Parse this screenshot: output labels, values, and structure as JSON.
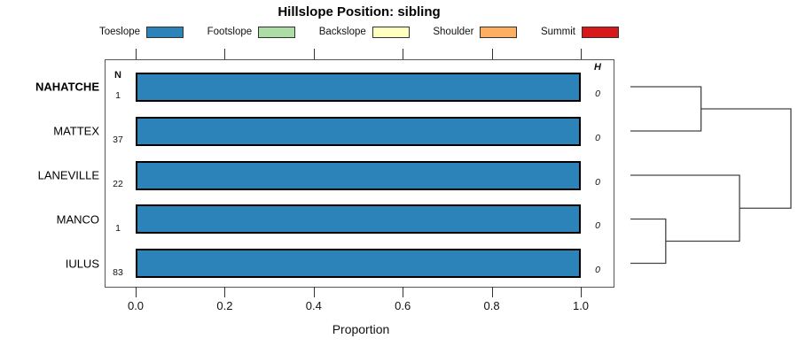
{
  "chart_data": {
    "type": "bar",
    "orientation": "horizontal",
    "stacked": true,
    "title": "Hillslope Position: sibling",
    "xlabel": "Proportion",
    "xlim": [
      0,
      1
    ],
    "x_ticks": [
      "0.0",
      "0.2",
      "0.4",
      "0.6",
      "0.8",
      "1.0"
    ],
    "grid": false,
    "legend_position": "top",
    "legend": [
      {
        "label": "Toeslope",
        "color": "#2B83BA"
      },
      {
        "label": "Footslope",
        "color": "#ABDDA4"
      },
      {
        "label": "Backslope",
        "color": "#FFFFBF"
      },
      {
        "label": "Shoulder",
        "color": "#FDAE61"
      },
      {
        "label": "Summit",
        "color": "#D7191C"
      }
    ],
    "columns": {
      "n_header": "N",
      "h_header": "H"
    },
    "rows": [
      {
        "label": "NAHATCHE",
        "bold": true,
        "n": "1",
        "h": "0",
        "segments": [
          {
            "category": "Toeslope",
            "value": 1.0
          }
        ]
      },
      {
        "label": "MATTEX",
        "bold": false,
        "n": "37",
        "h": "0",
        "segments": [
          {
            "category": "Toeslope",
            "value": 1.0
          }
        ]
      },
      {
        "label": "LANEVILLE",
        "bold": false,
        "n": "22",
        "h": "0",
        "segments": [
          {
            "category": "Toeslope",
            "value": 1.0
          }
        ]
      },
      {
        "label": "MANCO",
        "bold": false,
        "n": "1",
        "h": "0",
        "segments": [
          {
            "category": "Toeslope",
            "value": 1.0
          }
        ]
      },
      {
        "label": "IULUS",
        "bold": false,
        "n": "83",
        "h": "0",
        "segments": [
          {
            "category": "Toeslope",
            "value": 1.0
          }
        ]
      }
    ],
    "dendrogram": {
      "leaves": [
        "NAHATCHE",
        "MATTEX",
        "LANEVILLE",
        "MANCO",
        "IULUS"
      ],
      "merges": [
        {
          "id": "m1",
          "a": "NAHATCHE",
          "b": "MATTEX",
          "height": 0.44
        },
        {
          "id": "m2",
          "a": "MANCO",
          "b": "IULUS",
          "height": 0.22
        },
        {
          "id": "m3",
          "a": "LANEVILLE",
          "b": "m2",
          "height": 0.68
        },
        {
          "id": "m4",
          "a": "m1",
          "b": "m3",
          "height": 1.0
        }
      ]
    }
  }
}
